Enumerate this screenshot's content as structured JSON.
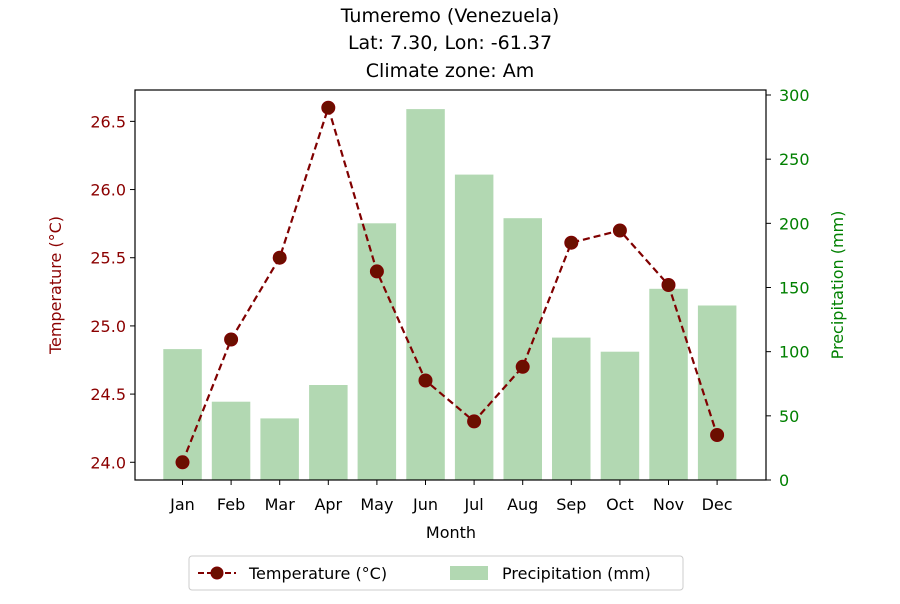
{
  "chart_data": {
    "type": "bar+line",
    "title_lines": [
      "Tumeremo (Venezuela)",
      "Lat: 7.30, Lon: -61.37",
      "Climate zone: Am"
    ],
    "xlabel": "Month",
    "ylabel_left": "Temperature (°C)",
    "ylabel_right": "Precipitation (mm)",
    "categories": [
      "Jan",
      "Feb",
      "Mar",
      "Apr",
      "May",
      "Jun",
      "Jul",
      "Aug",
      "Sep",
      "Oct",
      "Nov",
      "Dec"
    ],
    "series": [
      {
        "name": "Temperature (°C)",
        "type": "line",
        "axis": "left",
        "values": [
          24.0,
          24.9,
          25.5,
          26.6,
          25.4,
          24.6,
          24.3,
          24.7,
          25.61,
          25.7,
          25.3,
          24.2
        ]
      },
      {
        "name": "Precipitation (mm)",
        "type": "bar",
        "axis": "right",
        "values": [
          102,
          61,
          48,
          74,
          200,
          289,
          238,
          204,
          111,
          100,
          149,
          136
        ]
      }
    ],
    "ylim_left": [
      23.87,
      26.73
    ],
    "ylim_right": [
      0,
      300
    ],
    "yticks_left": [
      "24.0",
      "24.5",
      "25.0",
      "25.5",
      "26.0",
      "26.5"
    ],
    "yticks_right": [
      "0",
      "50",
      "100",
      "150",
      "200",
      "250",
      "300"
    ],
    "legend_position": "bottom-center",
    "colors": {
      "temperature": "#800000",
      "temperature_marker": "#6b0f00",
      "precipitation": "#b2d8b2",
      "left_axis_text": "#8b0000",
      "right_axis_text": "#008000"
    },
    "grid": false
  }
}
